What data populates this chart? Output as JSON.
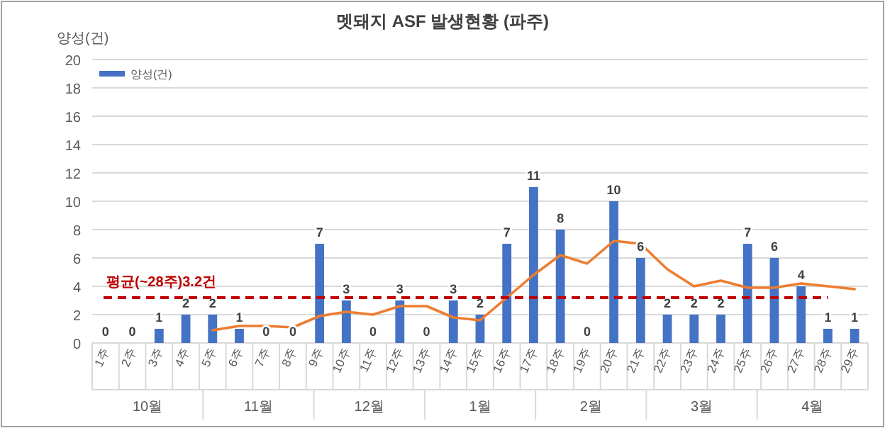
{
  "chart_data": {
    "type": "bar",
    "title": "멧돼지 ASF 발생현황 (파주)",
    "ylabel": "양성(건)",
    "categories": [
      "1주",
      "2주",
      "3주",
      "4주",
      "5주",
      "6주",
      "7주",
      "8주",
      "9주",
      "10주",
      "11주",
      "12주",
      "13주",
      "14주",
      "15주",
      "16주",
      "17주",
      "18주",
      "19주",
      "20주",
      "21주",
      "22주",
      "23주",
      "24주",
      "25주",
      "26주",
      "27주",
      "28주",
      "29주"
    ],
    "series": [
      {
        "name": "양성(건)",
        "color": "#4472c4",
        "values": [
          0,
          0,
          1,
          2,
          2,
          1,
          0,
          0,
          7,
          3,
          0,
          3,
          0,
          3,
          2,
          7,
          11,
          8,
          0,
          10,
          6,
          2,
          2,
          2,
          7,
          6,
          4,
          1,
          1
        ],
        "value_labels": [
          "0",
          "0",
          "1",
          "2",
          "2",
          "1",
          "0",
          "0",
          "7",
          "3",
          "0",
          "3",
          "0",
          "3",
          "2",
          "7",
          "11",
          "8",
          "0",
          "10",
          "6",
          "2",
          "2",
          "2",
          "7",
          "6",
          "4",
          "1",
          "1"
        ]
      },
      {
        "type": "line",
        "color": "#ed7d31",
        "values": [
          null,
          null,
          null,
          null,
          0.9,
          1.2,
          1.2,
          1.1,
          1.9,
          2.2,
          2.0,
          2.6,
          2.6,
          1.8,
          1.6,
          3.2,
          4.8,
          6.2,
          5.6,
          7.2,
          7.0,
          5.2,
          4.0,
          4.4,
          3.9,
          3.9,
          4.2,
          4.0,
          3.8
        ]
      }
    ],
    "ylim": [
      0,
      20
    ],
    "yticks": [
      0,
      2,
      4,
      6,
      8,
      10,
      12,
      14,
      16,
      18,
      20
    ],
    "grid": "y",
    "legend": "top left",
    "ref_lines": [
      {
        "axis": "y",
        "value": 3.2,
        "label": "평균(~28주)3.2건",
        "color": "#c00000",
        "line_style": "dashed"
      }
    ],
    "annotations": [
      "10월",
      "11월",
      "12월",
      "1월",
      "2월",
      "3월",
      "4월"
    ]
  }
}
